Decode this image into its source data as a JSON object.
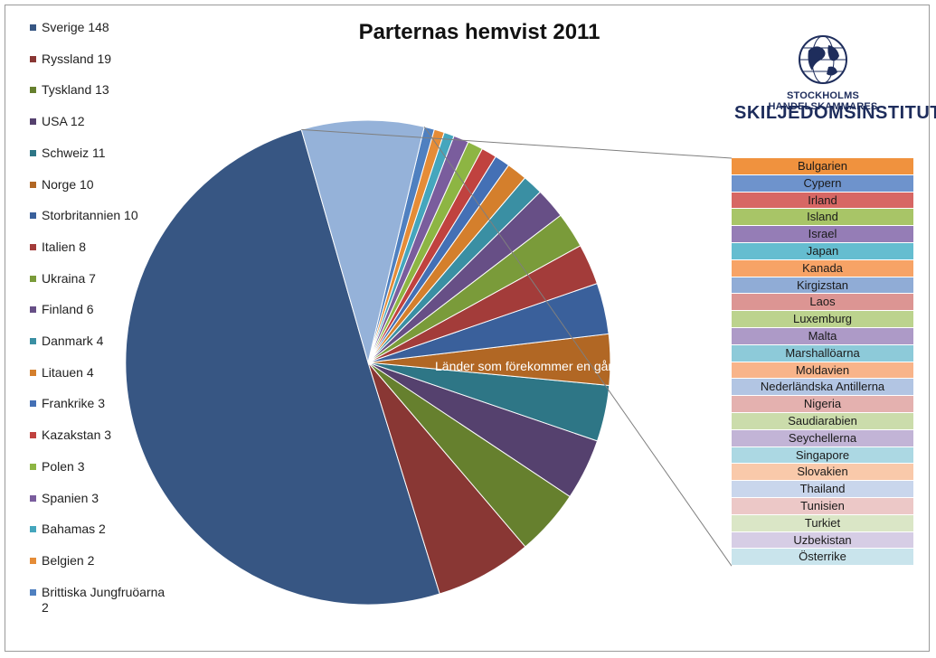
{
  "chart_data": {
    "type": "pie",
    "title": "Parternas hemvist 2011",
    "series": [
      {
        "name": "Sverige",
        "value": 148,
        "label": "Sverige 148",
        "color": "#375683"
      },
      {
        "name": "Ryssland",
        "value": 19,
        "label": "Ryssland 19",
        "color": "#893734"
      },
      {
        "name": "Tyskland",
        "value": 13,
        "label": "Tyskland 13",
        "color": "#66802e"
      },
      {
        "name": "USA",
        "value": 12,
        "label": "USA 12",
        "color": "#55416e"
      },
      {
        "name": "Schweiz",
        "value": 11,
        "label": "Schweiz 11",
        "color": "#2e7686"
      },
      {
        "name": "Norge",
        "value": 10,
        "label": "Norge 10",
        "color": "#b16724"
      },
      {
        "name": "Storbritannien",
        "value": 10,
        "label": "Storbritannien 10",
        "color": "#3a609b"
      },
      {
        "name": "Italien",
        "value": 8,
        "label": "Italien 8",
        "color": "#a33c3a"
      },
      {
        "name": "Ukraina",
        "value": 7,
        "label": "Ukraina 7",
        "color": "#7a9b3a"
      },
      {
        "name": "Finland",
        "value": 6,
        "label": "Finland 6",
        "color": "#674f86"
      },
      {
        "name": "Danmark",
        "value": 4,
        "label": "Danmark 4",
        "color": "#3a8fa3"
      },
      {
        "name": "Litauen",
        "value": 4,
        "label": "Litauen 4",
        "color": "#d47f2c"
      },
      {
        "name": "Frankrike",
        "value": 3,
        "label": "Frankrike 3",
        "color": "#4470b5"
      },
      {
        "name": "Kazakstan",
        "value": 3,
        "label": "Kazakstan 3",
        "color": "#c0423f"
      },
      {
        "name": "Polen",
        "value": 3,
        "label": "Polen 3",
        "color": "#8db543"
      },
      {
        "name": "Spanien",
        "value": 3,
        "label": "Spanien 3",
        "color": "#7a5d9d"
      },
      {
        "name": "Bahamas",
        "value": 2,
        "label": "Bahamas 2",
        "color": "#45a6bd"
      },
      {
        "name": "Belgien",
        "value": 2,
        "label": "Belgien 2",
        "color": "#e58c37"
      },
      {
        "name": "Brittiska Jungfruöarna",
        "value": 2,
        "label": "Brittiska Jungfruöarna 2",
        "color": "#4f80c0"
      },
      {
        "name": "Länder som förekommer en gång",
        "value": 24,
        "label": "Länder som förekommer en gång",
        "color": "#95b2d9"
      }
    ],
    "breakout": {
      "countries": [
        {
          "name": "Bulgarien",
          "color": "#f0923e"
        },
        {
          "name": "Cypern",
          "color": "#6e93cc"
        },
        {
          "name": "Irland",
          "color": "#d76764"
        },
        {
          "name": "Island",
          "color": "#a8c567"
        },
        {
          "name": "Israel",
          "color": "#957db6"
        },
        {
          "name": "Japan",
          "color": "#65bdd0"
        },
        {
          "name": "Kanada",
          "color": "#f7a366"
        },
        {
          "name": "Kirgizstan",
          "color": "#90acd6"
        },
        {
          "name": "Laos",
          "color": "#dc9593"
        },
        {
          "name": "Luxemburg",
          "color": "#bcd38e"
        },
        {
          "name": "Malta",
          "color": "#ad9ac7"
        },
        {
          "name": "Marshallöarna",
          "color": "#8dcad9"
        },
        {
          "name": "Moldavien",
          "color": "#f8b48a"
        },
        {
          "name": "Nederländska Antillerna",
          "color": "#b2c5e3"
        },
        {
          "name": "Nigeria",
          "color": "#e4b1af"
        },
        {
          "name": "Saudiarabien",
          "color": "#cbdcab"
        },
        {
          "name": "Seychellerna",
          "color": "#c2b4d6"
        },
        {
          "name": "Singapore",
          "color": "#acd8e3"
        },
        {
          "name": "Slovakien",
          "color": "#f9c9aa"
        },
        {
          "name": "Thailand",
          "color": "#c9d6ec"
        },
        {
          "name": "Tunisien",
          "color": "#ecc8c7"
        },
        {
          "name": "Turkiet",
          "color": "#dae6c6"
        },
        {
          "name": "Uzbekistan",
          "color": "#d6cde5"
        },
        {
          "name": "Österrike",
          "color": "#c9e4ec"
        }
      ]
    },
    "legend_position": "left"
  },
  "logo": {
    "line1": "STOCKHOLMS HANDELSKAMMARES",
    "line2": "SKILJEDOMSINSTITUT"
  }
}
